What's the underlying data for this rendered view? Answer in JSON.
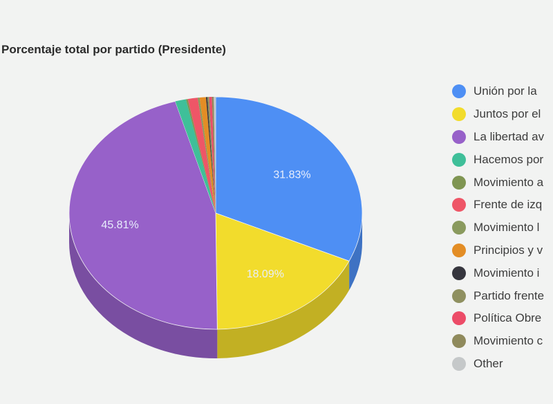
{
  "chart_data": {
    "type": "pie",
    "style": "3d",
    "title": "Porcentaje total por partido (Presidente)",
    "legend_position": "right",
    "categories": [
      "Unión por la ...",
      "Juntos por el ...",
      "La libertad a...",
      "Hacemos po...",
      "Movimiento a...",
      "Frente de izq...",
      "Movimiento l...",
      "Principios y v...",
      "Movimiento i...",
      "Partido frente...",
      "Política Obre...",
      "Movimiento c...",
      "Other"
    ],
    "values": [
      31.83,
      18.09,
      45.81,
      1.2,
      0.2,
      1.1,
      0.2,
      0.7,
      0.15,
      0.2,
      0.3,
      0.2,
      0.21
    ],
    "value_labels": [
      "31.83%",
      "18.09%",
      "45.81%",
      "",
      "",
      "",
      "",
      "",
      "",
      "",
      "",
      "",
      ""
    ],
    "colors": [
      "#4e8ff4",
      "#f2dc2c",
      "#9761c9",
      "#3fbf99",
      "#7f9552",
      "#ee5667",
      "#8a9a5e",
      "#e38d25",
      "#36363e",
      "#8f9060",
      "#ec4c68",
      "#8f8a5c",
      "#c5c8c9"
    ]
  },
  "title": "Porcentaje total por partido (Presidente)",
  "legend": [
    {
      "label": "Unión por la",
      "color": "#4e8ff4"
    },
    {
      "label": "Juntos por el",
      "color": "#f2dc2c"
    },
    {
      "label": "La libertad av",
      "color": "#9761c9"
    },
    {
      "label": "Hacemos por",
      "color": "#3fbf99"
    },
    {
      "label": "Movimiento a",
      "color": "#7f9552"
    },
    {
      "label": "Frente de izq",
      "color": "#ee5667"
    },
    {
      "label": "Movimiento l",
      "color": "#8a9a5e"
    },
    {
      "label": "Principios y v",
      "color": "#e38d25"
    },
    {
      "label": "Movimiento i",
      "color": "#36363e"
    },
    {
      "label": "Partido frente",
      "color": "#8f9060"
    },
    {
      "label": "Política Obre",
      "color": "#ec4c68"
    },
    {
      "label": "Movimiento c",
      "color": "#8f8a5c"
    },
    {
      "label": "Other",
      "color": "#c5c8c9"
    }
  ],
  "labels": {
    "blue": "31.83%",
    "yellow": "18.09%",
    "purple": "45.81%"
  }
}
